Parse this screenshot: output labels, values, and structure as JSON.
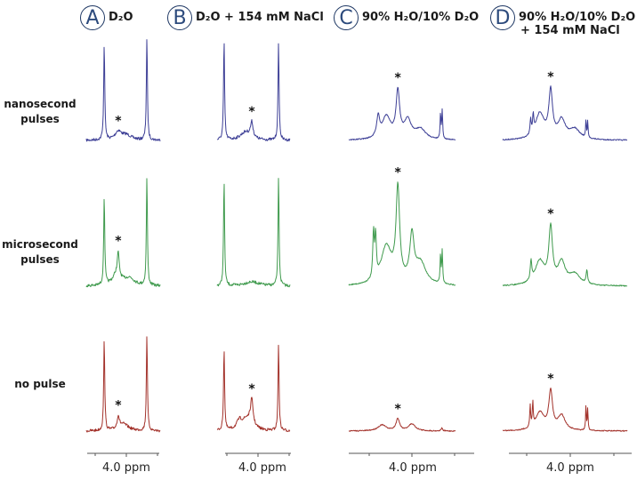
{
  "chart_data": {
    "type": "line",
    "columns": [
      {
        "letter": "A",
        "title": "D₂O"
      },
      {
        "letter": "B",
        "title": "D₂O + 154 mM NaCl"
      },
      {
        "letter": "C",
        "title": "90% H₂O/10% D₂O"
      },
      {
        "letter": "D",
        "title": "90% H₂O/10% D₂O",
        "title2": "+ 154 mM NaCl"
      }
    ],
    "rows": [
      {
        "label": "nanosecond",
        "label2": "pulses",
        "color": "#3d3f96"
      },
      {
        "label": "microsecond",
        "label2": "pulses",
        "color": "#3f9a4d"
      },
      {
        "label": "no pulse",
        "label2": "",
        "color": "#a3322b"
      }
    ],
    "xlabel": "4.0 ppm",
    "x_tick_labeled": 4.0,
    "x_axis_reversed": true,
    "star_marker": "*",
    "intensity_units": "relative",
    "panels": [
      [
        {
          "star_ppm": 4.26,
          "peaks": [
            [
              4.71,
              0.95,
              0.02
            ],
            [
              3.34,
              1.0,
              0.02
            ],
            [
              4.26,
              0.08,
              0.12
            ],
            [
              4.0,
              0.05,
              0.2
            ]
          ]
        },
        {
          "star_ppm": 4.26,
          "peaks": [
            [
              4.71,
              0.82,
              0.02
            ],
            [
              3.34,
              1.0,
              0.02
            ],
            [
              4.26,
              0.2,
              0.03
            ],
            [
              4.3,
              0.12,
              0.15
            ],
            [
              3.9,
              0.07,
              0.2
            ]
          ]
        },
        {
          "star_ppm": 4.26,
          "peaks": [
            [
              4.71,
              0.92,
              0.02
            ],
            [
              3.34,
              0.97,
              0.02
            ],
            [
              4.26,
              0.12,
              0.04
            ],
            [
              4.1,
              0.07,
              0.2
            ]
          ]
        }
      ],
      [
        {
          "star_ppm": 4.2,
          "peaks": [
            [
              5.09,
              0.97,
              0.02
            ],
            [
              3.34,
              0.95,
              0.02
            ],
            [
              4.2,
              0.15,
              0.05
            ],
            [
              4.4,
              0.08,
              0.2
            ]
          ]
        },
        {
          "star_ppm": null,
          "peaks": [
            [
              5.09,
              0.98,
              0.02
            ],
            [
              3.34,
              1.0,
              0.02
            ],
            [
              4.2,
              0.04,
              0.3
            ]
          ]
        },
        {
          "star_ppm": 4.2,
          "peaks": [
            [
              5.09,
              0.83,
              0.02
            ],
            [
              3.34,
              0.87,
              0.02
            ],
            [
              4.2,
              0.25,
              0.05
            ],
            [
              4.35,
              0.12,
              0.2
            ],
            [
              4.6,
              0.08,
              0.1
            ]
          ]
        }
      ],
      [
        {
          "star_ppm": 4.33,
          "peaks": [
            [
              4.33,
              0.45,
              0.05
            ],
            [
              4.79,
              0.2,
              0.04
            ],
            [
              4.6,
              0.22,
              0.12
            ],
            [
              4.1,
              0.18,
              0.1
            ],
            [
              3.8,
              0.1,
              0.15
            ],
            [
              3.29,
              0.28,
              0.012
            ],
            [
              3.33,
              0.25,
              0.012
            ]
          ]
        },
        {
          "star_ppm": 4.33,
          "peaks": [
            [
              4.33,
              0.85,
              0.05
            ],
            [
              4.9,
              0.42,
              0.02
            ],
            [
              4.85,
              0.38,
              0.02
            ],
            [
              4.6,
              0.35,
              0.15
            ],
            [
              4.0,
              0.42,
              0.06
            ],
            [
              3.8,
              0.2,
              0.15
            ],
            [
              3.29,
              0.3,
              0.012
            ],
            [
              3.33,
              0.27,
              0.012
            ]
          ]
        },
        {
          "star_ppm": 4.33,
          "peaks": [
            [
              4.33,
              0.12,
              0.05
            ],
            [
              4.7,
              0.06,
              0.12
            ],
            [
              4.0,
              0.07,
              0.1
            ],
            [
              3.3,
              0.03,
              0.02
            ]
          ]
        }
      ],
      [
        {
          "star_ppm": 4.45,
          "peaks": [
            [
              4.45,
              0.45,
              0.05
            ],
            [
              4.91,
              0.15,
              0.015
            ],
            [
              4.85,
              0.17,
              0.015
            ],
            [
              4.7,
              0.25,
              0.12
            ],
            [
              4.2,
              0.18,
              0.1
            ],
            [
              3.9,
              0.1,
              0.15
            ],
            [
              3.64,
              0.17,
              0.01
            ],
            [
              3.6,
              0.16,
              0.01
            ]
          ]
        },
        {
          "star_ppm": 4.45,
          "peaks": [
            [
              4.45,
              0.5,
              0.05
            ],
            [
              4.9,
              0.18,
              0.02
            ],
            [
              4.7,
              0.22,
              0.13
            ],
            [
              4.2,
              0.2,
              0.1
            ],
            [
              3.9,
              0.1,
              0.15
            ],
            [
              3.62,
              0.12,
              0.02
            ]
          ]
        },
        {
          "star_ppm": 4.45,
          "peaks": [
            [
              4.45,
              0.38,
              0.05
            ],
            [
              4.92,
              0.22,
              0.012
            ],
            [
              4.86,
              0.24,
              0.012
            ],
            [
              4.7,
              0.18,
              0.12
            ],
            [
              4.2,
              0.15,
              0.1
            ],
            [
              3.64,
              0.25,
              0.01
            ],
            [
              3.6,
              0.22,
              0.01
            ]
          ]
        }
      ]
    ]
  }
}
